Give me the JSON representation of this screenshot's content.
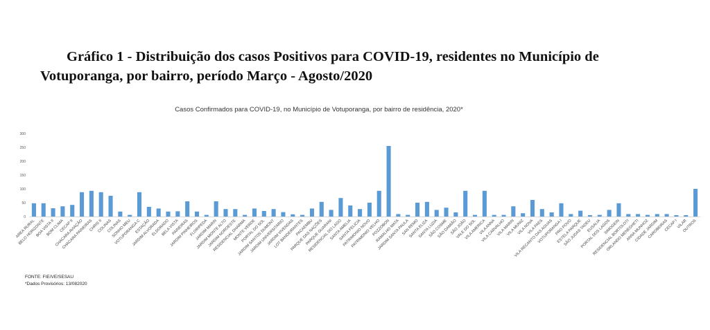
{
  "page": {
    "heading_line1": "Gráfico 1 -  Distribuição dos casos Positivos para COVID-19, residentes no Município de",
    "heading_line2": "Votuporanga, por bairro, período Março - Agosto/2020",
    "source": "FONTE: FIE/VE/SESAU",
    "note": "*Dados Provisórios: 13/082020"
  },
  "chart_data": {
    "type": "bar",
    "title": "Casos Confirmados para COVID-19,  no Município de Votuporanga, por bairro de residência, 2020*",
    "xlabel": "",
    "ylabel": "",
    "ylim": [
      0,
      300
    ],
    "yticks": [
      0,
      50,
      100,
      150,
      200,
      250,
      300
    ],
    "grid": false,
    "legend": "none",
    "bar_color": "#5b9bd5",
    "categories": [
      "AREA RURAL",
      "BELO HORIZONTE",
      "BOA VISTA II",
      "BOM CLIMA",
      "CECAP II",
      "CHACARA AVIAÇÃO",
      "CHACARA PAINEIRAS",
      "CHRIS II",
      "COLINAS",
      "COLINAS",
      "SONHO MEU",
      "VOTUPORANGA C",
      "ESTAÇÃO",
      "JARDIM ALVORADA",
      "ELDORADO",
      "BELA VISTA",
      "PAINEIRAS",
      "JARDIM PINHEIROS",
      "FLORIPEDA",
      "JARDIM MARIN",
      "JARDIM MONTE ALTO",
      "JARDIM NOROESTE",
      "RESIDENCIAL DHARMA",
      "MONTE VERDE",
      "PORTAL DO SOL",
      "JARDIM SANTOS DUMONT",
      "JARDIM UNIVERSITARIO",
      "JARDIM VIVENDAS",
      "LOT BANDEIRANTES",
      "PACAEMBU",
      "PARQUE DAS NAÇÕES",
      "PARQUE GUARANI",
      "RESIDENCIAL DO LAGO",
      "SANTA AMELIA",
      "SANTA FELICIA",
      "PATRIMONIO NOVO",
      "PATRIMONIO VELHO",
      "POZZOBON",
      "RAMALHO MATA",
      "JARDIM SANTA PAULA",
      "SAN REMO",
      "SANTA ELIZA",
      "SANTA LUZIA",
      "SÃO COSME",
      "SÃO DAMIÃO",
      "SÃO JOÃO",
      "VALE DO SOL",
      "VILA AMERICA",
      "VILA ANNA",
      "VILA CARVALHO",
      "VILA MARIN",
      "VILA MUNIZ",
      "VILA NOVA",
      "VILA PAES",
      "VILA RECANTO DAS AGUAS",
      "VOTUPORANGA I",
      "PRO POVO",
      "ESTELA PARQUE",
      "SÃO JUDAS TADEU",
      "EUSALIA",
      "PORTAL DOS LAGOS",
      "SIMOGEIN",
      "RESIDENCIAL BORTOLOTI",
      "ORLANDO MENEGHETI",
      "ANNA MUNHOZ",
      "CIDADE JARDIM",
      "CAROBEIRAS",
      "CECAP I",
      "VILAR",
      "OUTROS"
    ],
    "values": [
      48,
      48,
      30,
      37,
      42,
      88,
      93,
      88,
      75,
      18,
      6,
      88,
      35,
      29,
      18,
      19,
      55,
      18,
      6,
      55,
      27,
      27,
      6,
      29,
      20,
      27,
      16,
      8,
      6,
      29,
      53,
      24,
      67,
      40,
      27,
      50,
      93,
      255,
      9,
      6,
      50,
      53,
      24,
      32,
      15,
      93,
      6,
      93,
      6,
      6,
      37,
      12,
      60,
      27,
      15,
      48,
      9,
      21,
      5,
      6,
      24,
      48,
      9,
      9,
      6,
      9,
      9,
      5,
      5,
      100
    ]
  }
}
